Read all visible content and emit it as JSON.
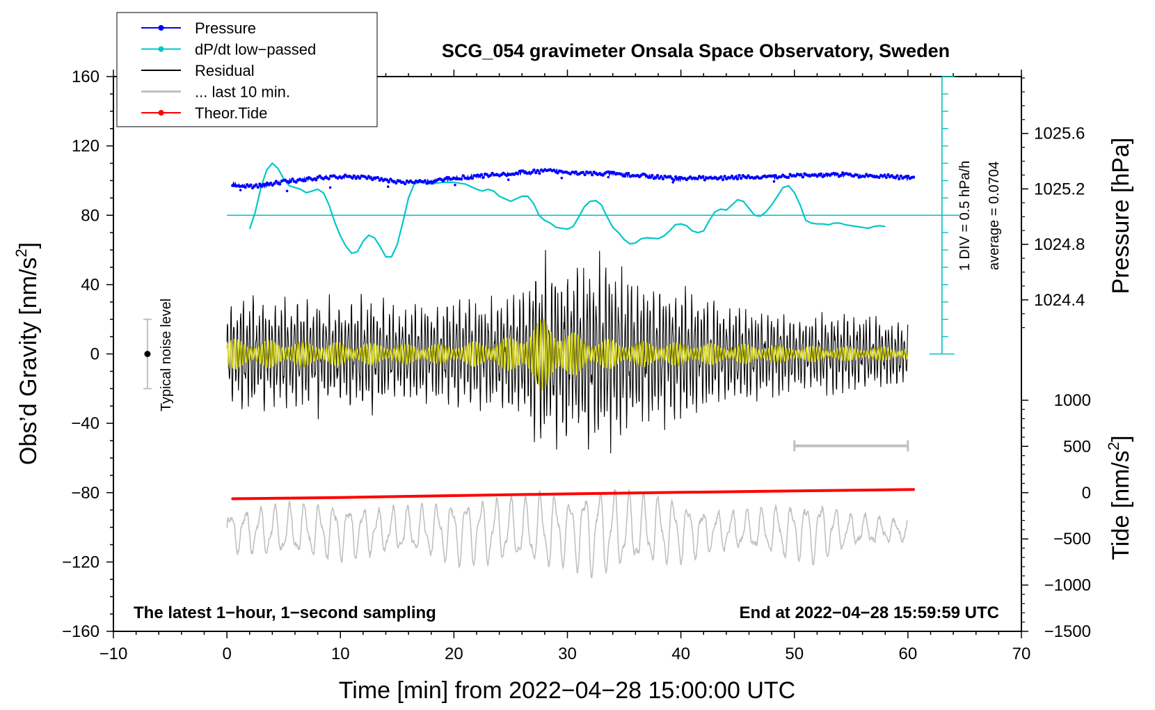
{
  "chart_data": {
    "type": "line",
    "title": "SCG_054 gravimeter Onsala Space Observatory, Sweden",
    "xlabel": "Time [min] from 2022−04−28 15:00:00 UTC",
    "ylabel": "Obs’d Gravity [nm/s",
    "ylabel_sup": "2",
    "ylabel_end": "]",
    "y2label": "Pressure [hPa]",
    "y3label": "Tide [nm/s",
    "y3label_sup": "2",
    "y3label_end": "]",
    "xlim": [
      -10,
      70
    ],
    "ylim": [
      -160,
      160
    ],
    "x_ticks": [
      "−10",
      "0",
      "10",
      "20",
      "30",
      "40",
      "50",
      "60",
      "70"
    ],
    "y_ticks": [
      "160",
      "120",
      "80",
      "40",
      "0",
      "−40",
      "−80",
      "−120",
      "−160"
    ],
    "pressure_axis": {
      "ticks": [
        "1025.6",
        "1025.2",
        "1024.8",
        "1024.4"
      ],
      "values": [
        1025.6,
        1025.2,
        1024.8,
        1024.4
      ],
      "gravity_equiv": [
        127.2,
        95.2,
        63.2,
        31.2
      ]
    },
    "tide_axis": {
      "ticks": [
        "1000",
        "500",
        "0",
        "−500",
        "−1000",
        "−1500"
      ],
      "values": [
        1000,
        500,
        0,
        -500,
        -1000,
        -1500
      ],
      "gravity_equiv": [
        -26.7,
        -53.3,
        -80,
        -106.7,
        -133.3,
        -160
      ]
    },
    "legend": [
      {
        "label": "Pressure",
        "color": "#0000ff",
        "marker": true
      },
      {
        "label": "dP/dt low−passed",
        "color": "#00c8c8",
        "marker": true
      },
      {
        "label": "Residual",
        "color": "#000000",
        "marker": false
      },
      {
        "label": "... last 10 min.",
        "color": "#c0c0c0",
        "marker": false
      },
      {
        "label": "Theor.Tide",
        "color": "#ff0000",
        "marker": true
      }
    ],
    "annotations": {
      "bottom_left": "The latest 1−hour, 1−second sampling",
      "bottom_right": "End at 2022−04−28 15:59:59 UTC",
      "noise_label": "Typical noise level",
      "scale_div": "1 DIV = 0.5 hPa/h",
      "scale_avg": "average = 0.0704"
    },
    "noise_bar": {
      "x": -7,
      "center": 0,
      "half": 20
    },
    "dpdt_baseline": 80,
    "dpdt_scale": {
      "x": 63,
      "y0": 0,
      "y1": 160,
      "ticks": 16
    },
    "window_bar": {
      "x0": 50,
      "x1": 60,
      "y": -53
    },
    "series": [
      {
        "name": "Pressure",
        "color": "#0000ff",
        "points": [
          [
            0.5,
            98
          ],
          [
            1,
            97.5
          ],
          [
            2,
            96.5
          ],
          [
            3,
            97
          ],
          [
            4,
            98
          ],
          [
            5,
            99.5
          ],
          [
            6,
            100
          ],
          [
            7,
            101
          ],
          [
            8,
            101.5
          ],
          [
            9,
            102
          ],
          [
            10,
            102
          ],
          [
            11,
            102.5
          ],
          [
            12,
            102
          ],
          [
            13,
            101
          ],
          [
            14,
            100
          ],
          [
            15,
            99.5
          ],
          [
            16,
            99
          ],
          [
            17,
            99
          ],
          [
            18,
            99.5
          ],
          [
            19,
            100.5
          ],
          [
            20,
            101.5
          ],
          [
            21,
            102
          ],
          [
            22,
            102.5
          ],
          [
            23,
            103
          ],
          [
            24,
            103.5
          ],
          [
            25,
            104
          ],
          [
            26,
            104.5
          ],
          [
            27,
            105
          ],
          [
            28,
            105.5
          ],
          [
            29,
            105.5
          ],
          [
            30,
            105
          ],
          [
            31,
            104.5
          ],
          [
            32,
            104
          ],
          [
            33,
            104
          ],
          [
            34,
            104
          ],
          [
            35,
            103.5
          ],
          [
            36,
            103
          ],
          [
            37,
            102.5
          ],
          [
            38,
            102
          ],
          [
            39,
            101.5
          ],
          [
            40,
            101
          ],
          [
            41,
            101.5
          ],
          [
            42,
            101.5
          ],
          [
            43,
            101.5
          ],
          [
            44,
            101.5
          ],
          [
            45,
            102
          ],
          [
            46,
            102
          ],
          [
            47,
            102
          ],
          [
            48,
            102
          ],
          [
            49,
            102.5
          ],
          [
            50,
            102.5
          ],
          [
            51,
            103
          ],
          [
            52,
            103
          ],
          [
            53,
            103.5
          ],
          [
            54,
            103.5
          ],
          [
            55,
            103
          ],
          [
            56,
            102.5
          ],
          [
            57,
            102.5
          ],
          [
            58,
            102.5
          ],
          [
            59,
            102
          ],
          [
            60,
            101.5
          ],
          [
            60.5,
            101.5
          ]
        ]
      },
      {
        "name": "dP/dt low−passed",
        "color": "#00c8c8",
        "points": [
          [
            2,
            72
          ],
          [
            2.5,
            82
          ],
          [
            3,
            96
          ],
          [
            3.5,
            106
          ],
          [
            4,
            110
          ],
          [
            4.5,
            107
          ],
          [
            5,
            101
          ],
          [
            5.5,
            97
          ],
          [
            6,
            96
          ],
          [
            6.5,
            95
          ],
          [
            7,
            93
          ],
          [
            7.5,
            94
          ],
          [
            8,
            95
          ],
          [
            8.5,
            93
          ],
          [
            9,
            86
          ],
          [
            9.5,
            76
          ],
          [
            10,
            68
          ],
          [
            10.5,
            62
          ],
          [
            11,
            58
          ],
          [
            11.5,
            59
          ],
          [
            12,
            65
          ],
          [
            12.5,
            68.5
          ],
          [
            13,
            67
          ],
          [
            13.5,
            62
          ],
          [
            14,
            56
          ],
          [
            14.5,
            56
          ],
          [
            15,
            63
          ],
          [
            15.5,
            76
          ],
          [
            16,
            90
          ],
          [
            16.5,
            98
          ],
          [
            17,
            99
          ],
          [
            18,
            98
          ],
          [
            19,
            99
          ],
          [
            20,
            99
          ],
          [
            21,
            98
          ],
          [
            22,
            95
          ],
          [
            22.5,
            94
          ],
          [
            23,
            95
          ],
          [
            23.5,
            94
          ],
          [
            24,
            91
          ],
          [
            25,
            88
          ],
          [
            26,
            91
          ],
          [
            26.5,
            91
          ],
          [
            27,
            87
          ],
          [
            27.5,
            80
          ],
          [
            28,
            77
          ],
          [
            28.5,
            75.5
          ],
          [
            29,
            73
          ],
          [
            30,
            72
          ],
          [
            30.5,
            73.5
          ],
          [
            31,
            79
          ],
          [
            31.5,
            85
          ],
          [
            32,
            88
          ],
          [
            32.5,
            88.5
          ],
          [
            33,
            86
          ],
          [
            33.5,
            79
          ],
          [
            34,
            73
          ],
          [
            34.5,
            70
          ],
          [
            35,
            66
          ],
          [
            35.5,
            63.5
          ],
          [
            36,
            64
          ],
          [
            36.5,
            66.5
          ],
          [
            37,
            67
          ],
          [
            38,
            66.5
          ],
          [
            38.5,
            68
          ],
          [
            39,
            71
          ],
          [
            39.5,
            74.5
          ],
          [
            40,
            75
          ],
          [
            40.5,
            74
          ],
          [
            41,
            71
          ],
          [
            41.5,
            70
          ],
          [
            42,
            71
          ],
          [
            42.5,
            77
          ],
          [
            43,
            82
          ],
          [
            43.5,
            83.5
          ],
          [
            44,
            83
          ],
          [
            44.5,
            86
          ],
          [
            45,
            89
          ],
          [
            45.5,
            88
          ],
          [
            46,
            84
          ],
          [
            46.5,
            80
          ],
          [
            47,
            79.5
          ],
          [
            47.5,
            82
          ],
          [
            48,
            86
          ],
          [
            48.5,
            91
          ],
          [
            49,
            96
          ],
          [
            49.5,
            97
          ],
          [
            50,
            93
          ],
          [
            50.5,
            86
          ],
          [
            51,
            77
          ],
          [
            51.5,
            75.5
          ],
          [
            52,
            75
          ],
          [
            52.5,
            75
          ],
          [
            53,
            74.5
          ],
          [
            53.5,
            75.5
          ],
          [
            54,
            75.5
          ],
          [
            54.5,
            74.5
          ],
          [
            55,
            74
          ],
          [
            55.5,
            73.5
          ],
          [
            56,
            73
          ],
          [
            56.5,
            72.5
          ],
          [
            57,
            73.5
          ],
          [
            57.5,
            74
          ],
          [
            58,
            73.5
          ]
        ]
      },
      {
        "name": "Residual",
        "color": "#000000",
        "x_start": 0,
        "x_end": 60,
        "envelope": [
          [
            0,
            30
          ],
          [
            2,
            38
          ],
          [
            4,
            34
          ],
          [
            7,
            36
          ],
          [
            10,
            31
          ],
          [
            13,
            38
          ],
          [
            15,
            30
          ],
          [
            18,
            32
          ],
          [
            21,
            34
          ],
          [
            24,
            36
          ],
          [
            26,
            42
          ],
          [
            27,
            56
          ],
          [
            28,
            57
          ],
          [
            29,
            56
          ],
          [
            30,
            52
          ],
          [
            31,
            55
          ],
          [
            32,
            60
          ],
          [
            33,
            57
          ],
          [
            34,
            57
          ],
          [
            35,
            52
          ],
          [
            36,
            46
          ],
          [
            38,
            44
          ],
          [
            39,
            43
          ],
          [
            40,
            44
          ],
          [
            42,
            37
          ],
          [
            44,
            31
          ],
          [
            46,
            30
          ],
          [
            48,
            27
          ],
          [
            50,
            24
          ],
          [
            52,
            24
          ],
          [
            54,
            26
          ],
          [
            56,
            24
          ],
          [
            58,
            22
          ],
          [
            60,
            20
          ]
        ],
        "period_min": 0.28
      },
      {
        "name": "Residual (filtered)",
        "color": "#d4d400",
        "envelope": [
          [
            0,
            9
          ],
          [
            5,
            8
          ],
          [
            10,
            7
          ],
          [
            15,
            6
          ],
          [
            20,
            6
          ],
          [
            25,
            10
          ],
          [
            27,
            18
          ],
          [
            28,
            22
          ],
          [
            29,
            20
          ],
          [
            30,
            14
          ],
          [
            32,
            10
          ],
          [
            35,
            8
          ],
          [
            40,
            7
          ],
          [
            45,
            6
          ],
          [
            50,
            5
          ],
          [
            55,
            4
          ],
          [
            60,
            4
          ]
        ]
      },
      {
        "name": "... last 10 min.",
        "color": "#c0c0c0",
        "x_start": 0,
        "x_end": 60,
        "center": -102,
        "envelope": [
          [
            0,
            12
          ],
          [
            3,
            15
          ],
          [
            6,
            16
          ],
          [
            10,
            18
          ],
          [
            14,
            14
          ],
          [
            18,
            16
          ],
          [
            20,
            20
          ],
          [
            23,
            21
          ],
          [
            26,
            20
          ],
          [
            28,
            24
          ],
          [
            30,
            22
          ],
          [
            32,
            28
          ],
          [
            34,
            26
          ],
          [
            36,
            22
          ],
          [
            38,
            22
          ],
          [
            40,
            20
          ],
          [
            42,
            14
          ],
          [
            45,
            12
          ],
          [
            47,
            14
          ],
          [
            50,
            18
          ],
          [
            52,
            20
          ],
          [
            54,
            12
          ],
          [
            56,
            10
          ],
          [
            58,
            8
          ],
          [
            60,
            6
          ]
        ],
        "period_min": 1.3
      },
      {
        "name": "Theor.Tide",
        "color": "#ff0000",
        "points": [
          [
            0.5,
            -83.5
          ],
          [
            10,
            -82.8
          ],
          [
            20,
            -81.7
          ],
          [
            30,
            -80.7
          ],
          [
            40,
            -79.8
          ],
          [
            50,
            -79
          ],
          [
            60.5,
            -78.2
          ]
        ]
      }
    ]
  }
}
